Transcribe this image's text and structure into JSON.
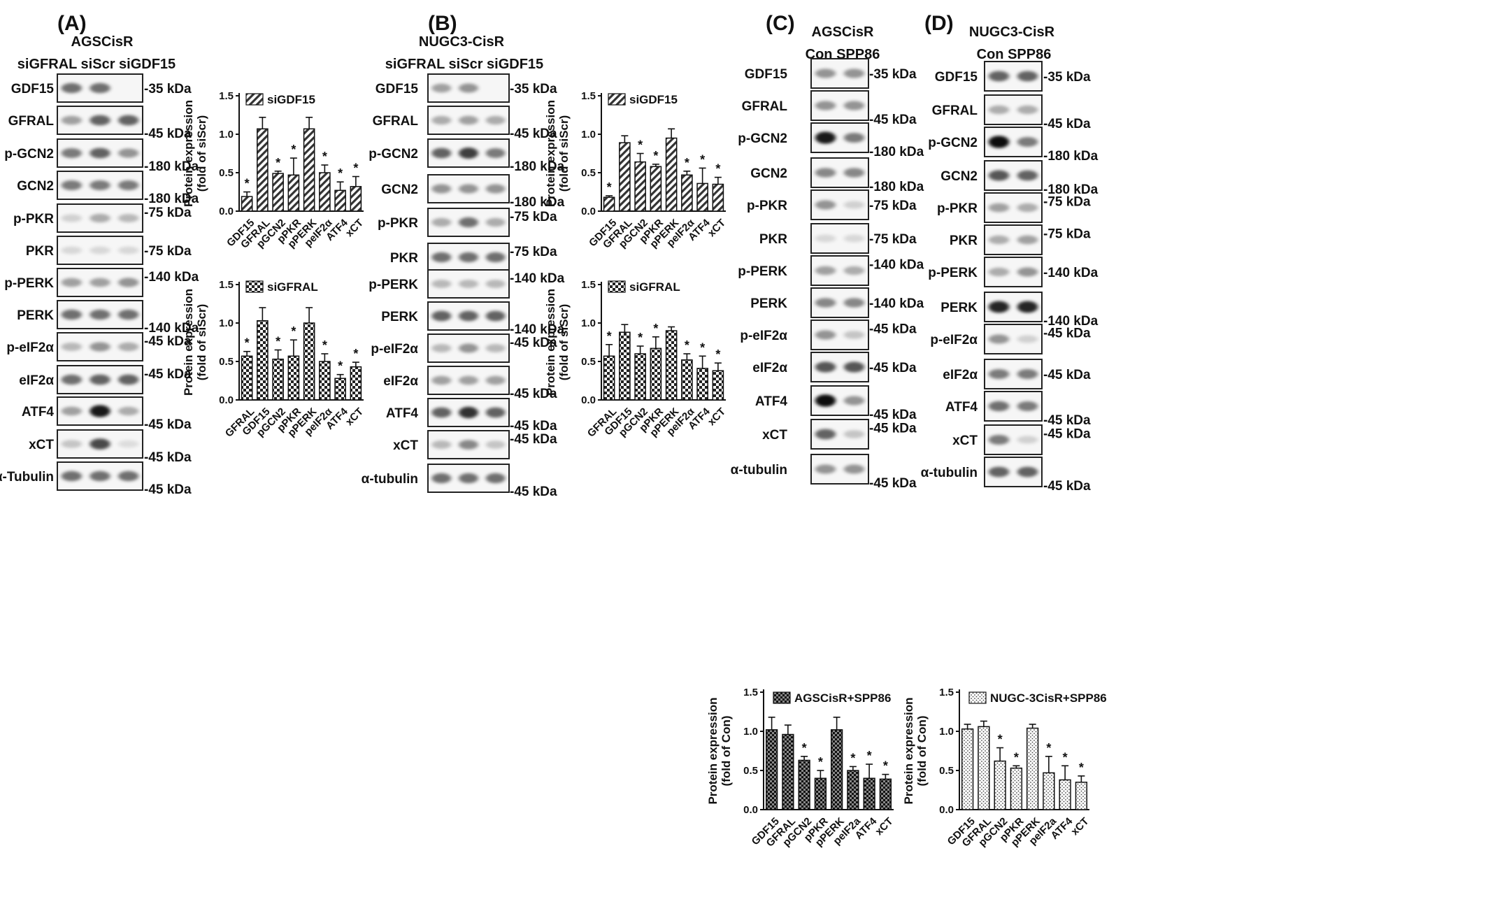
{
  "panels": [
    {
      "id": "A",
      "label": "(A)",
      "cell_line": "AGSCisR",
      "lanes": "siGFRAL siScr siGDF15",
      "blots": [
        {
          "name": "GDF15",
          "kda": "-35 kDa",
          "bands": [
            0.55,
            0.55,
            0.0
          ]
        },
        {
          "name": "GFRAL",
          "kda": "-45 kDa",
          "bands": [
            0.35,
            0.6,
            0.6
          ]
        },
        {
          "name": "p-GCN2",
          "kda": "-180 kDa",
          "bands": [
            0.5,
            0.6,
            0.4
          ]
        },
        {
          "name": "GCN2",
          "kda": "-180 kDa",
          "bands": [
            0.5,
            0.5,
            0.5
          ]
        },
        {
          "name": "p-PKR",
          "kda": "-75 kDa",
          "bands": [
            0.15,
            0.3,
            0.25
          ]
        },
        {
          "name": "PKR",
          "kda": "-75 kDa",
          "bands": [
            0.12,
            0.12,
            0.12
          ]
        },
        {
          "name": "p-PERK",
          "kda": "-140 kDa",
          "bands": [
            0.35,
            0.35,
            0.4
          ]
        },
        {
          "name": "PERK",
          "kda": "-140 kDa",
          "bands": [
            0.55,
            0.55,
            0.55
          ]
        },
        {
          "name": "p-eIF2α",
          "kda": "-45 kDa",
          "bands": [
            0.25,
            0.4,
            0.3
          ]
        },
        {
          "name": "eIF2α",
          "kda": "-45 kDa",
          "bands": [
            0.55,
            0.6,
            0.6
          ]
        },
        {
          "name": "ATF4",
          "kda": "-45 kDa",
          "bands": [
            0.35,
            0.9,
            0.3
          ]
        },
        {
          "name": "xCT",
          "kda": "-45 kDa",
          "bands": [
            0.2,
            0.7,
            0.1
          ]
        },
        {
          "name": "α-Tubulin",
          "kda": "-45 kDa",
          "bands": [
            0.55,
            0.55,
            0.55
          ]
        }
      ]
    },
    {
      "id": "B",
      "label": "(B)",
      "cell_line": "NUGC3-CisR",
      "lanes": "siGFRAL siScr siGDF15",
      "blots": [
        {
          "name": "GDF15",
          "kda": "-35 kDa",
          "bands": [
            0.35,
            0.4,
            0.0
          ]
        },
        {
          "name": "GFRAL",
          "kda": "-45 kDa",
          "bands": [
            0.3,
            0.35,
            0.3
          ]
        },
        {
          "name": "p-GCN2",
          "kda": "-180 kDa",
          "bands": [
            0.6,
            0.75,
            0.5
          ]
        },
        {
          "name": "GCN2",
          "kda": "-180 kDa",
          "bands": [
            0.4,
            0.4,
            0.4
          ]
        },
        {
          "name": "p-PKR",
          "kda": "-75 kDa",
          "bands": [
            0.3,
            0.55,
            0.3
          ]
        },
        {
          "name": "PKR",
          "kda": "-75 kDa",
          "bands": [
            0.55,
            0.55,
            0.55
          ]
        },
        {
          "name": "p-PERK",
          "kda": "-140 kDa",
          "bands": [
            0.25,
            0.25,
            0.25
          ]
        },
        {
          "name": "PERK",
          "kda": "-140 kDa",
          "bands": [
            0.6,
            0.6,
            0.6
          ]
        },
        {
          "name": "p-eIF2α",
          "kda": "-45 kDa",
          "bands": [
            0.25,
            0.4,
            0.25
          ]
        },
        {
          "name": "eIF2α",
          "kda": "-45 kDa",
          "bands": [
            0.35,
            0.35,
            0.35
          ]
        },
        {
          "name": "ATF4",
          "kda": "-45 kDa",
          "bands": [
            0.6,
            0.8,
            0.6
          ]
        },
        {
          "name": "xCT",
          "kda": "-45 kDa",
          "bands": [
            0.25,
            0.45,
            0.2
          ]
        },
        {
          "name": "α-tubulin",
          "kda": "-45 kDa",
          "bands": [
            0.55,
            0.55,
            0.55
          ]
        }
      ]
    },
    {
      "id": "C",
      "label": "(C)",
      "cell_line": "AGSCisR",
      "lanes": "Con SPP86",
      "blots": [
        {
          "name": "GDF15",
          "kda": "-35 kDa",
          "bands": [
            0.4,
            0.4
          ]
        },
        {
          "name": "GFRAL",
          "kda": "-45 kDa",
          "bands": [
            0.4,
            0.4
          ]
        },
        {
          "name": "p-GCN2",
          "kda": "-180 kDa",
          "bands": [
            0.9,
            0.5
          ]
        },
        {
          "name": "GCN2",
          "kda": "-180 kDa",
          "bands": [
            0.45,
            0.45
          ]
        },
        {
          "name": "p-PKR",
          "kda": "-75 kDa",
          "bands": [
            0.4,
            0.15
          ]
        },
        {
          "name": "PKR",
          "kda": "-75 kDa",
          "bands": [
            0.12,
            0.12
          ]
        },
        {
          "name": "p-PERK",
          "kda": "-140 kDa",
          "bands": [
            0.35,
            0.3
          ]
        },
        {
          "name": "PERK",
          "kda": "-140 kDa",
          "bands": [
            0.45,
            0.45
          ]
        },
        {
          "name": "p-eIF2α",
          "kda": "-45 kDa",
          "bands": [
            0.4,
            0.2
          ]
        },
        {
          "name": "eIF2α",
          "kda": "-45 kDa",
          "bands": [
            0.65,
            0.65
          ]
        },
        {
          "name": "ATF4",
          "kda": "-45 kDa",
          "bands": [
            0.95,
            0.4
          ]
        },
        {
          "name": "xCT",
          "kda": "-45 kDa",
          "bands": [
            0.6,
            0.2
          ]
        },
        {
          "name": "α-tubulin",
          "kda": "-45 kDa",
          "bands": [
            0.4,
            0.4
          ]
        }
      ],
      "kda_labels": [
        "-35 kDa",
        "-45 kDa",
        "-180 kDa",
        "-180 kDa",
        "-75 kDa",
        "-75 kDa",
        "-140 kDa",
        "-140 kDa",
        "-45 kDa",
        "-45 kDa",
        "-45 kDa",
        "-45 kDa",
        "-45 kDa"
      ]
    },
    {
      "id": "D",
      "label": "(D)",
      "cell_line": "NUGC3-CisR",
      "lanes": "Con SPP86",
      "blots": [
        {
          "name": "GDF15",
          "kda": "-35 kDa",
          "bands": [
            0.6,
            0.6
          ]
        },
        {
          "name": "GFRAL",
          "kda": "-45 kDa",
          "bands": [
            0.3,
            0.3
          ]
        },
        {
          "name": "p-GCN2",
          "kda": "-180 kDa",
          "bands": [
            0.95,
            0.5
          ]
        },
        {
          "name": "GCN2",
          "kda": "-180 kDa",
          "bands": [
            0.65,
            0.6
          ]
        },
        {
          "name": "p-PKR",
          "kda": "-75 kDa",
          "bands": [
            0.35,
            0.3
          ]
        },
        {
          "name": "PKR",
          "kda": "-75 kDa",
          "bands": [
            0.3,
            0.35
          ]
        },
        {
          "name": "p-PERK",
          "kda": "-140 kDa",
          "bands": [
            0.3,
            0.4
          ]
        },
        {
          "name": "PERK",
          "kda": "-140 kDa",
          "bands": [
            0.85,
            0.85
          ]
        },
        {
          "name": "p-eIF2α",
          "kda": "-45 kDa",
          "bands": [
            0.4,
            0.15
          ]
        },
        {
          "name": "eIF2α",
          "kda": "-45 kDa",
          "bands": [
            0.5,
            0.5
          ]
        },
        {
          "name": "ATF4",
          "kda": "-45 kDa",
          "bands": [
            0.55,
            0.5
          ]
        },
        {
          "name": "xCT",
          "kda": "-45 kDa",
          "bands": [
            0.5,
            0.15
          ]
        },
        {
          "name": "α-tubulin",
          "kda": "-45 kDa",
          "bands": [
            0.6,
            0.6
          ]
        }
      ]
    }
  ],
  "chart_data": [
    {
      "type": "bar",
      "panel": "A",
      "legend": "siGDF15",
      "pattern": "diag",
      "ylabel": "Protein expression (fold of siScr)",
      "ylim": [
        0,
        1.5
      ],
      "yticks": [
        "0.0",
        "0.5",
        "1.0",
        "1.5"
      ],
      "categories": [
        "GDF15",
        "GFRAL",
        "pGCN2",
        "pPKR",
        "pPERK",
        "peIF2α",
        "ATF4",
        "xCT"
      ],
      "values": [
        0.19,
        1.07,
        0.49,
        0.47,
        1.07,
        0.5,
        0.27,
        0.32
      ],
      "errors": [
        0.06,
        0.15,
        0.03,
        0.22,
        0.15,
        0.1,
        0.11,
        0.13
      ],
      "significant": [
        true,
        false,
        true,
        true,
        false,
        true,
        true,
        true
      ]
    },
    {
      "type": "bar",
      "panel": "A",
      "legend": "siGFRAL",
      "pattern": "check",
      "ylabel": "Protein expression (fold of siScr)",
      "ylim": [
        0,
        1.5
      ],
      "yticks": [
        "0.0",
        "0.5",
        "1.0",
        "1.5"
      ],
      "categories": [
        "GFRAL",
        "GDF15",
        "pGCN2",
        "pPKR",
        "pPERK",
        "peIF2α",
        "ATF4",
        "xCT"
      ],
      "values": [
        0.57,
        1.03,
        0.53,
        0.57,
        1.0,
        0.5,
        0.28,
        0.43
      ],
      "errors": [
        0.06,
        0.17,
        0.12,
        0.21,
        0.2,
        0.1,
        0.05,
        0.06
      ],
      "significant": [
        true,
        false,
        true,
        true,
        false,
        true,
        true,
        true
      ]
    },
    {
      "type": "bar",
      "panel": "B",
      "legend": "siGDF15",
      "pattern": "diag",
      "ylabel": "Protein expression (fold of siScr)",
      "ylim": [
        0,
        1.5
      ],
      "yticks": [
        "0.0",
        "0.5",
        "1.0",
        "1.5"
      ],
      "categories": [
        "GDF15",
        "GFRAL",
        "pGCN2",
        "pPKR",
        "pPERK",
        "peIF2α",
        "ATF4",
        "xCT"
      ],
      "values": [
        0.18,
        0.89,
        0.64,
        0.58,
        0.95,
        0.47,
        0.36,
        0.35
      ],
      "errors": [
        0.02,
        0.09,
        0.11,
        0.03,
        0.12,
        0.05,
        0.2,
        0.09
      ],
      "significant": [
        true,
        false,
        true,
        true,
        false,
        true,
        true,
        true
      ]
    },
    {
      "type": "bar",
      "panel": "B",
      "legend": "siGFRAL",
      "pattern": "check",
      "ylabel": "Protein expression (fold of siScr)",
      "ylim": [
        0,
        1.5
      ],
      "yticks": [
        "0.0",
        "0.5",
        "1.0",
        "1.5"
      ],
      "categories": [
        "GFRAL",
        "GDF15",
        "pGCN2",
        "pPKR",
        "pPERK",
        "peIF2α",
        "ATF4",
        "xCT"
      ],
      "values": [
        0.57,
        0.88,
        0.6,
        0.67,
        0.9,
        0.52,
        0.41,
        0.38
      ],
      "errors": [
        0.15,
        0.1,
        0.1,
        0.15,
        0.05,
        0.08,
        0.16,
        0.1
      ],
      "significant": [
        true,
        false,
        true,
        true,
        false,
        true,
        true,
        true
      ]
    },
    {
      "type": "bar",
      "panel": "C",
      "legend": "AGSCisR+SPP86",
      "pattern": "dark-check",
      "ylabel": "Protein expression (fold of Con)",
      "ylim": [
        0,
        1.5
      ],
      "yticks": [
        "0.0",
        "0.5",
        "1.0",
        "1.5"
      ],
      "categories": [
        "GDF15",
        "GFRAL",
        "pGCN2",
        "pPKR",
        "pPERK",
        "peIF2a",
        "ATF4",
        "xCT"
      ],
      "values": [
        1.02,
        0.96,
        0.63,
        0.4,
        1.02,
        0.5,
        0.4,
        0.39
      ],
      "errors": [
        0.16,
        0.12,
        0.05,
        0.1,
        0.16,
        0.05,
        0.18,
        0.06
      ],
      "significant": [
        false,
        false,
        true,
        true,
        false,
        true,
        true,
        true
      ]
    },
    {
      "type": "bar",
      "panel": "D",
      "legend": "NUGC-3CisR+SPP86",
      "pattern": "dots",
      "ylabel": "Protein expression (fold of Con)",
      "ylim": [
        0,
        1.5
      ],
      "yticks": [
        "0.0",
        "0.5",
        "1.0",
        "1.5"
      ],
      "categories": [
        "GDF15",
        "GFRAL",
        "pGCN2",
        "pPKR",
        "pPERK",
        "peIF2a",
        "ATF4",
        "xCT"
      ],
      "values": [
        1.03,
        1.06,
        0.62,
        0.53,
        1.04,
        0.47,
        0.38,
        0.35
      ],
      "errors": [
        0.06,
        0.07,
        0.17,
        0.03,
        0.05,
        0.21,
        0.18,
        0.08
      ],
      "significant": [
        false,
        false,
        true,
        true,
        false,
        true,
        true,
        true
      ]
    }
  ]
}
